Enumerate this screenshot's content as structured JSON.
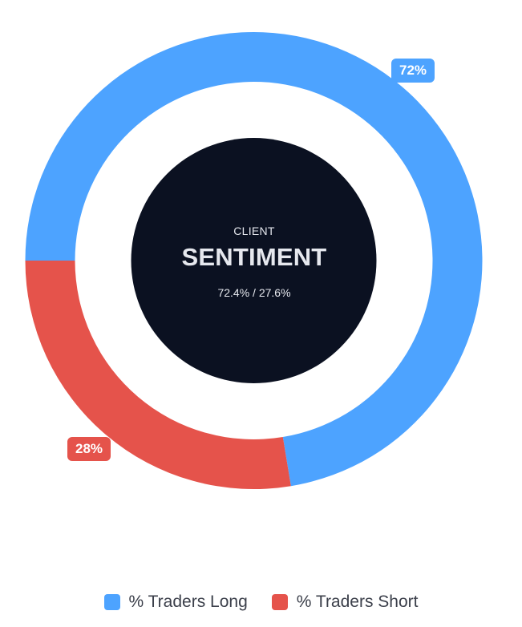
{
  "chart_data": {
    "type": "pie",
    "variant": "donut",
    "categories": [
      "% Traders Long",
      "% Traders Short"
    ],
    "values": [
      72.4,
      27.6
    ],
    "slice_labels": [
      "72%",
      "28%"
    ],
    "colors": [
      "#4da3ff",
      "#e5534b"
    ],
    "legend_position": "bottom",
    "center": {
      "kicker": "CLIENT",
      "title": "SENTIMENT",
      "ratio": "72.4% / 27.6%",
      "fill": "#0b1121"
    }
  }
}
